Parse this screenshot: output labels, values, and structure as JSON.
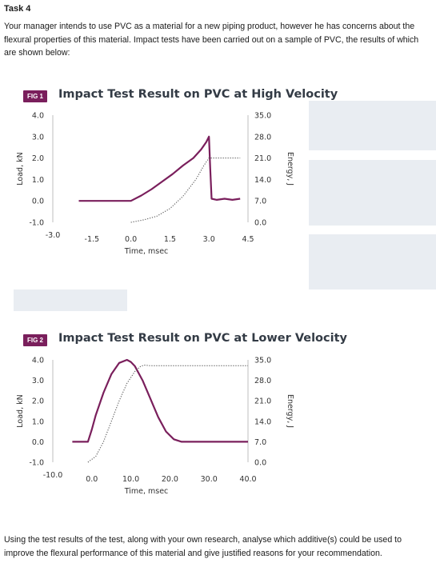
{
  "task": {
    "title": "Task 4",
    "intro": "Your manager intends to use PVC as a material for a new piping product, however he has concerns about the flexural properties of this material. Impact tests have been carried out on a sample of PVC, the results of which are shown below:",
    "question": "Using the test results of the test, along with your own research, analyse which additive(s) could be used to improve the flexural performance of this material and give justified reasons for your recommendation."
  },
  "colors": {
    "load_line": "#7a1f5c",
    "badge": "#7a1f5c",
    "energy_line": "#555555",
    "axis": "#bfbfbf"
  },
  "chart_data": [
    {
      "type": "line",
      "badge": "FIG 1",
      "title": "Impact Test Result on PVC at High Velocity",
      "xlabel": "Time, msec",
      "ylabel": "Load, kN",
      "y2label": "Energy, J",
      "xlim": [
        -3.0,
        4.5
      ],
      "ylim": [
        -1.0,
        4.0
      ],
      "y2lim": [
        0.0,
        35.0
      ],
      "x_ticks": [
        "-3.0",
        "-1.5",
        "0.0",
        "1.5",
        "3.0",
        "4.5"
      ],
      "y_ticks": [
        "4.0",
        "3.0",
        "2.0",
        "1.0",
        "0.0",
        "-1.0"
      ],
      "y2_ticks": [
        "35.0",
        "28.0",
        "21.0",
        "14.0",
        "7.0",
        "0.0"
      ],
      "series": [
        {
          "axis": "left",
          "style": "solid",
          "x": [
            -2.0,
            0.0,
            0.4,
            0.8,
            1.2,
            1.6,
            2.0,
            2.4,
            2.7,
            2.9,
            3.0,
            3.05,
            3.1,
            3.3,
            3.6,
            3.9,
            4.2
          ],
          "y": [
            0.0,
            0.0,
            0.25,
            0.55,
            0.9,
            1.25,
            1.65,
            2.0,
            2.4,
            2.75,
            3.0,
            1.5,
            0.1,
            0.05,
            0.1,
            0.05,
            0.1
          ]
        },
        {
          "axis": "right",
          "style": "dotted",
          "x": [
            0.0,
            0.5,
            1.0,
            1.5,
            2.0,
            2.5,
            2.8,
            3.0,
            3.05,
            3.5,
            4.2
          ],
          "y": [
            0.0,
            0.8,
            2.0,
            4.5,
            8.5,
            14.0,
            18.5,
            21.0,
            21.0,
            21.0,
            21.0
          ]
        }
      ]
    },
    {
      "type": "line",
      "badge": "FIG 2",
      "title": "Impact Test Result on PVC at Lower Velocity",
      "xlabel": "Time, msec",
      "ylabel": "Load, kN",
      "y2label": "Energy, J",
      "xlim": [
        -10.0,
        40.0
      ],
      "ylim": [
        -1.0,
        4.0
      ],
      "y2lim": [
        0.0,
        35.0
      ],
      "x_ticks": [
        "-10.0",
        "0.0",
        "10.0",
        "20.0",
        "30.0",
        "40.0"
      ],
      "y_ticks": [
        "4.0",
        "3.0",
        "2.0",
        "1.0",
        "0.0",
        "-1.0"
      ],
      "y2_ticks": [
        "35.0",
        "28.0",
        "21.0",
        "14.0",
        "7.0",
        "0.0"
      ],
      "series": [
        {
          "axis": "left",
          "style": "solid",
          "x": [
            -5.0,
            -1.0,
            0.0,
            1.0,
            3.0,
            5.0,
            7.0,
            9.0,
            10.0,
            11.0,
            13.0,
            15.0,
            17.0,
            19.0,
            21.0,
            23.0,
            25.0,
            40.0
          ],
          "y": [
            0.0,
            0.0,
            0.6,
            1.3,
            2.4,
            3.3,
            3.85,
            4.0,
            3.9,
            3.7,
            3.0,
            2.1,
            1.2,
            0.5,
            0.12,
            0.0,
            0.0,
            0.0
          ]
        },
        {
          "axis": "right",
          "style": "dotted",
          "x": [
            -1.0,
            1.0,
            3.0,
            5.0,
            7.0,
            9.0,
            11.0,
            12.5,
            13.5,
            15.0,
            40.0
          ],
          "y": [
            0.0,
            2.0,
            7.0,
            14.0,
            21.0,
            27.0,
            31.0,
            32.8,
            33.2,
            33.0,
            33.0
          ]
        }
      ]
    }
  ]
}
